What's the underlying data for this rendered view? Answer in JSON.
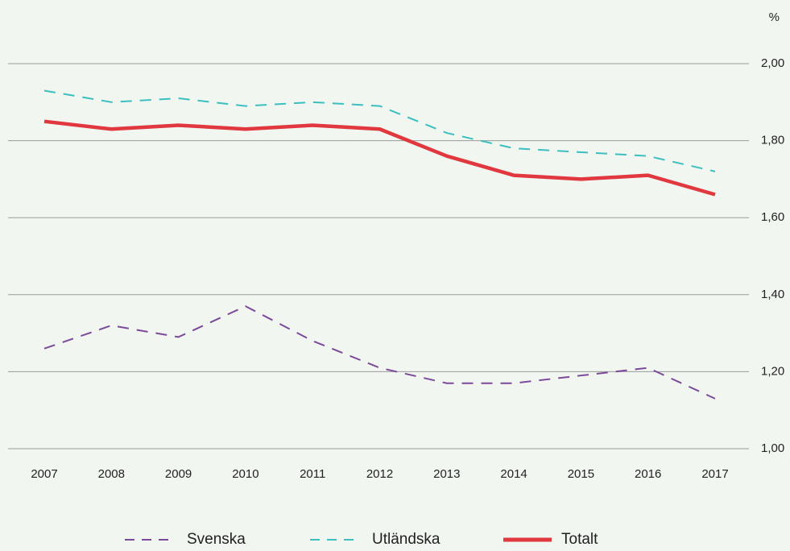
{
  "chart_data": {
    "type": "line",
    "unit_label": "%",
    "categories": [
      "2007",
      "2008",
      "2009",
      "2010",
      "2011",
      "2012",
      "2013",
      "2014",
      "2015",
      "2016",
      "2017"
    ],
    "series": [
      {
        "name": "Svenska",
        "color": "#7b4a9a",
        "dashed": true,
        "values": [
          1.26,
          1.32,
          1.29,
          1.37,
          1.28,
          1.21,
          1.17,
          1.17,
          1.19,
          1.21,
          1.13
        ]
      },
      {
        "name": "Utländska",
        "color": "#3bbfbf",
        "dashed": true,
        "values": [
          1.93,
          1.9,
          1.91,
          1.89,
          1.9,
          1.89,
          1.82,
          1.78,
          1.77,
          1.76,
          1.72
        ]
      },
      {
        "name": "Totalt",
        "color": "#e0383e",
        "dashed": false,
        "values": [
          1.85,
          1.83,
          1.84,
          1.83,
          1.84,
          1.83,
          1.76,
          1.71,
          1.7,
          1.71,
          1.66
        ]
      }
    ],
    "ylim": [
      1.0,
      2.0
    ],
    "yticks": [
      {
        "value": 1.0,
        "label": "1,00"
      },
      {
        "value": 1.2,
        "label": "1,20"
      },
      {
        "value": 1.4,
        "label": "1,40"
      },
      {
        "value": 1.6,
        "label": "1,60"
      },
      {
        "value": 1.8,
        "label": "1,80"
      },
      {
        "value": 2.0,
        "label": "2,00"
      }
    ],
    "grid": true,
    "legend": "bottom"
  }
}
